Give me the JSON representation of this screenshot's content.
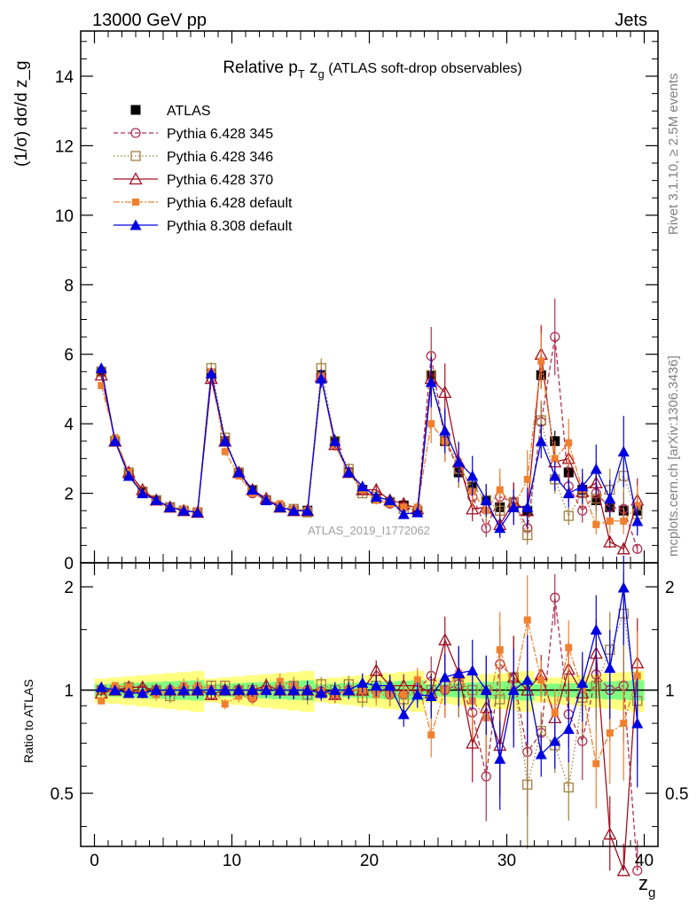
{
  "header": {
    "left": "13000 GeV pp",
    "right": "Jets"
  },
  "side": {
    "rivet": "Rivet 3.1.10, ≥ 2.5M events",
    "mcplots": "mcplots.cern.ch [arXiv:1306.3436]"
  },
  "watermark": "ATLAS_2019_I1772062",
  "colors": {
    "ATLAS": "#000000",
    "p345": "#b03050",
    "p346": "#a08040",
    "p370": "#a01020",
    "p6def": "#f08030",
    "p8def": "#0000e0",
    "band_green": "#80ff80",
    "band_yellow": "#ffff80"
  },
  "chart_data": [
    {
      "type": "scatter",
      "title": "Relative p_T z_g (ATLAS soft-drop observables)",
      "title_parts": {
        "main": "Relative p",
        "sub1": "T",
        "mid": " z",
        "sub2": "g",
        "rest": " (ATLAS soft-drop observables)"
      },
      "ylabel": "(1/σ) dσ/d z_g",
      "ylim": [
        0,
        15.3
      ],
      "yticks": [
        0,
        2,
        4,
        6,
        8,
        10,
        12,
        14
      ],
      "ytick_labels": [
        "0",
        "2",
        "4",
        "6",
        "8",
        "10",
        "12",
        "14"
      ],
      "x": [
        0.5,
        1.5,
        2.5,
        3.5,
        4.5,
        5.5,
        6.5,
        7.5,
        8.5,
        9.5,
        10.5,
        11.5,
        12.5,
        13.5,
        14.5,
        15.5,
        16.5,
        17.5,
        18.5,
        19.5,
        20.5,
        21.5,
        22.5,
        23.5,
        24.5,
        25.5,
        26.5,
        27.5,
        28.5,
        29.5,
        30.5,
        31.5,
        32.5,
        33.5,
        34.5,
        35.5,
        36.5,
        37.5,
        38.5,
        39.5
      ],
      "legend_placement": "top-left",
      "series": [
        {
          "name": "ATLAS",
          "key": "ATLAS",
          "marker": "square-filled",
          "values": [
            5.5,
            3.5,
            2.55,
            2.05,
            1.8,
            1.6,
            1.5,
            1.45,
            5.45,
            3.5,
            2.6,
            2.1,
            1.8,
            1.6,
            1.5,
            1.5,
            5.4,
            3.5,
            2.6,
            2.1,
            1.85,
            1.75,
            1.65,
            1.5,
            5.4,
            3.5,
            2.6,
            2.2,
            1.8,
            1.6,
            1.6,
            1.5,
            5.4,
            3.5,
            2.6,
            2.1,
            1.8,
            1.6,
            1.5,
            1.5
          ]
        },
        {
          "name": "Pythia 6.428 345",
          "key": "p345",
          "marker": "circle-open",
          "dash": "5,3",
          "values": [
            5.5,
            3.5,
            2.5,
            2.05,
            1.8,
            1.6,
            1.5,
            1.45,
            5.3,
            3.5,
            2.6,
            2.0,
            1.8,
            1.6,
            1.5,
            1.5,
            5.35,
            3.4,
            2.6,
            2.1,
            1.85,
            1.7,
            1.6,
            1.5,
            5.95,
            3.5,
            2.7,
            1.9,
            1.0,
            1.9,
            1.75,
            1.0,
            4.05,
            6.5,
            2.2,
            1.5,
            2.0,
            1.6,
            1.55,
            0.4
          ]
        },
        {
          "name": "Pythia 6.428 346",
          "key": "p346",
          "marker": "square-open",
          "dash": "1.5,2.5",
          "values": [
            5.5,
            3.5,
            2.6,
            2.05,
            1.8,
            1.6,
            1.5,
            1.45,
            5.6,
            3.6,
            2.6,
            2.1,
            1.8,
            1.6,
            1.55,
            1.45,
            5.6,
            3.5,
            2.7,
            2.0,
            1.9,
            1.75,
            1.55,
            1.5,
            5.4,
            3.6,
            2.7,
            2.2,
            1.8,
            1.5,
            1.75,
            0.8,
            4.1,
            2.4,
            1.35,
            2.0,
            1.85,
            2.1,
            2.5,
            1.4
          ]
        },
        {
          "name": "Pythia 6.428 370",
          "key": "p370",
          "marker": "triangle-open",
          "dash": "",
          "values": [
            5.4,
            3.5,
            2.6,
            2.1,
            1.8,
            1.6,
            1.5,
            1.45,
            5.3,
            3.5,
            2.6,
            2.1,
            1.85,
            1.6,
            1.5,
            1.5,
            5.35,
            3.4,
            2.6,
            2.1,
            2.1,
            1.8,
            1.7,
            1.55,
            5.3,
            4.9,
            2.9,
            1.55,
            1.6,
            1.1,
            1.75,
            1.5,
            6.0,
            2.9,
            3.0,
            2.05,
            2.3,
            0.6,
            0.4,
            1.8
          ]
        },
        {
          "name": "Pythia 6.428 default",
          "key": "p6def",
          "marker": "square-filled-small",
          "dash": "7,2,2,2",
          "values": [
            5.1,
            3.6,
            2.6,
            2.0,
            1.75,
            1.6,
            1.55,
            1.5,
            5.5,
            3.2,
            2.5,
            2.0,
            1.8,
            1.7,
            1.55,
            1.5,
            5.35,
            3.4,
            2.6,
            2.1,
            1.8,
            1.7,
            1.6,
            1.6,
            4.0,
            3.5,
            2.9,
            2.05,
            1.5,
            2.1,
            1.6,
            2.4,
            5.8,
            3.0,
            3.45,
            2.1,
            1.1,
            1.2,
            1.2,
            1.65
          ]
        },
        {
          "name": "Pythia 8.308 default",
          "key": "p8def",
          "marker": "triangle-filled",
          "dash": "",
          "values": [
            5.6,
            3.5,
            2.5,
            2.0,
            1.8,
            1.6,
            1.5,
            1.45,
            5.45,
            3.5,
            2.6,
            2.1,
            1.8,
            1.6,
            1.5,
            1.5,
            5.3,
            3.5,
            2.6,
            2.2,
            1.9,
            1.8,
            1.4,
            1.45,
            5.2,
            3.8,
            2.9,
            2.5,
            1.8,
            1.0,
            1.6,
            1.6,
            3.5,
            2.5,
            2.0,
            2.2,
            2.7,
            1.85,
            3.2,
            1.2
          ]
        }
      ]
    },
    {
      "type": "scatter",
      "ylabel": "Ratio to ATLAS",
      "xlabel": "z_g",
      "xlabel_parts": {
        "main": "z",
        "sub": "g"
      },
      "ylim": [
        0.35,
        2.35
      ],
      "yticks": [
        0.5,
        1,
        2
      ],
      "ytick_labels": [
        "0.5",
        "1",
        "2"
      ],
      "xlim": [
        -1,
        41
      ],
      "xticks": [
        0,
        10,
        20,
        30,
        40
      ],
      "xtick_labels": [
        "0",
        "10",
        "20",
        "30",
        "40"
      ],
      "reference_line": 1,
      "series": [
        {
          "name": "Pythia 6.428 345",
          "key": "p345",
          "values": [
            1.0,
            1.0,
            0.98,
            1.0,
            1.0,
            1.0,
            1.0,
            1.0,
            0.97,
            1.0,
            1.0,
            0.95,
            1.0,
            1.0,
            1.0,
            1.0,
            0.99,
            0.97,
            1.0,
            1.0,
            1.0,
            0.97,
            0.97,
            1.0,
            1.1,
            1.0,
            1.04,
            0.86,
            0.56,
            1.19,
            1.09,
            0.66,
            0.75,
            1.86,
            0.85,
            0.71,
            1.11,
            1.0,
            1.03,
            0.27
          ]
        },
        {
          "name": "Pythia 6.428 346",
          "key": "p346",
          "values": [
            1.0,
            1.0,
            1.02,
            1.0,
            1.0,
            0.96,
            1.0,
            1.0,
            1.03,
            1.03,
            1.0,
            1.0,
            1.0,
            1.0,
            1.03,
            0.97,
            1.04,
            1.0,
            1.04,
            0.95,
            1.03,
            1.0,
            0.94,
            1.0,
            1.0,
            1.03,
            1.04,
            1.0,
            1.0,
            0.94,
            1.09,
            0.53,
            0.76,
            0.69,
            0.52,
            0.95,
            1.03,
            1.31,
            1.67,
            0.93
          ]
        },
        {
          "name": "Pythia 6.428 370",
          "key": "p370",
          "values": [
            0.98,
            1.0,
            1.02,
            1.02,
            1.0,
            1.0,
            1.0,
            1.0,
            0.97,
            1.0,
            1.0,
            1.0,
            1.03,
            1.0,
            1.0,
            1.0,
            0.99,
            0.97,
            1.0,
            1.0,
            1.14,
            1.03,
            1.03,
            1.03,
            0.98,
            1.4,
            1.12,
            0.7,
            0.89,
            0.69,
            1.09,
            1.0,
            1.11,
            0.83,
            1.15,
            0.98,
            1.28,
            0.38,
            0.27,
            1.2
          ]
        },
        {
          "name": "Pythia 6.428 default",
          "key": "p6def",
          "values": [
            0.93,
            1.03,
            1.02,
            0.98,
            0.97,
            1.0,
            1.03,
            1.03,
            1.01,
            0.91,
            0.96,
            0.95,
            1.0,
            1.06,
            1.03,
            1.0,
            0.99,
            0.97,
            1.0,
            1.0,
            0.97,
            0.97,
            0.97,
            1.07,
            0.74,
            1.0,
            1.12,
            0.93,
            0.83,
            1.31,
            1.0,
            1.6,
            1.07,
            0.86,
            1.33,
            1.0,
            0.61,
            0.75,
            0.8,
            1.1
          ]
        },
        {
          "name": "Pythia 8.308 default",
          "key": "p8def",
          "values": [
            1.02,
            1.0,
            0.98,
            0.98,
            1.0,
            1.0,
            1.0,
            1.0,
            1.0,
            1.0,
            1.0,
            1.0,
            1.0,
            1.0,
            1.0,
            1.0,
            0.98,
            1.0,
            1.0,
            1.05,
            1.03,
            1.03,
            0.85,
            0.97,
            0.96,
            1.09,
            1.12,
            1.14,
            1.0,
            0.63,
            1.0,
            1.07,
            0.65,
            0.71,
            0.77,
            1.05,
            1.5,
            1.16,
            1.99,
            0.8
          ]
        }
      ]
    }
  ]
}
